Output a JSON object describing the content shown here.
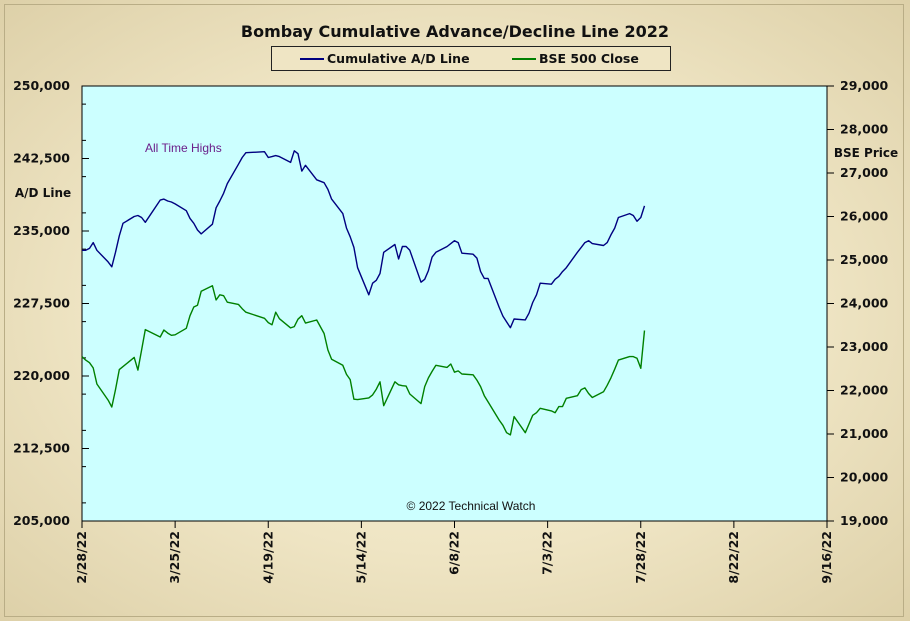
{
  "chart_data": {
    "type": "line",
    "title": "Bombay Cumulative Advance/Decline Line 2022",
    "left_axis_label": "A/D Line",
    "right_axis_label": "BSE Price",
    "left_ylim": [
      205000,
      250000
    ],
    "right_ylim": [
      19000,
      29000
    ],
    "left_ticks": [
      "250,000",
      "242,500",
      "235,000",
      "227,500",
      "220,000",
      "212,500",
      "205,000"
    ],
    "right_ticks": [
      "29,000",
      "28,000",
      "27,000",
      "26,000",
      "25,000",
      "24,000",
      "23,000",
      "22,000",
      "21,000",
      "20,000",
      "19,000"
    ],
    "x_ticks": [
      "2/28/22",
      "3/25/22",
      "4/19/22",
      "5/14/22",
      "6/8/22",
      "7/3/22",
      "7/28/22",
      "8/22/22",
      "9/16/22"
    ],
    "x_range": [
      "2022-02-28",
      "2022-09-16"
    ],
    "grid": false,
    "legend_position": "top-center",
    "annotations": [
      "All Time Highs",
      "© 2022 Technical Watch"
    ],
    "colors": {
      "plot_bg": "#ccffff",
      "ad_line": "#000080",
      "bse_line": "#008000"
    },
    "series": [
      {
        "name": "Cumulative A/D Line",
        "axis": "left",
        "x": [
          "2022-02-28",
          "2022-03-01",
          "2022-03-02",
          "2022-03-03",
          "2022-03-04",
          "2022-03-07",
          "2022-03-08",
          "2022-03-09",
          "2022-03-10",
          "2022-03-11",
          "2022-03-14",
          "2022-03-15",
          "2022-03-16",
          "2022-03-17",
          "2022-03-21",
          "2022-03-22",
          "2022-03-23",
          "2022-03-24",
          "2022-03-25",
          "2022-03-28",
          "2022-03-29",
          "2022-03-30",
          "2022-03-31",
          "2022-04-01",
          "2022-04-04",
          "2022-04-05",
          "2022-04-06",
          "2022-04-07",
          "2022-04-08",
          "2022-04-11",
          "2022-04-12",
          "2022-04-13",
          "2022-04-18",
          "2022-04-19",
          "2022-04-20",
          "2022-04-21",
          "2022-04-22",
          "2022-04-25",
          "2022-04-26",
          "2022-04-27",
          "2022-04-28",
          "2022-04-29",
          "2022-05-02",
          "2022-05-04",
          "2022-05-05",
          "2022-05-06",
          "2022-05-09",
          "2022-05-10",
          "2022-05-11",
          "2022-05-12",
          "2022-05-13",
          "2022-05-16",
          "2022-05-17",
          "2022-05-18",
          "2022-05-19",
          "2022-05-20",
          "2022-05-23",
          "2022-05-24",
          "2022-05-25",
          "2022-05-26",
          "2022-05-27",
          "2022-05-30",
          "2022-05-31",
          "2022-06-01",
          "2022-06-02",
          "2022-06-03",
          "2022-06-06",
          "2022-06-07",
          "2022-06-08",
          "2022-06-09",
          "2022-06-10",
          "2022-06-13",
          "2022-06-14",
          "2022-06-15",
          "2022-06-16",
          "2022-06-17",
          "2022-06-20",
          "2022-06-21",
          "2022-06-22",
          "2022-06-23",
          "2022-06-24",
          "2022-06-27",
          "2022-06-28",
          "2022-06-29",
          "2022-06-30",
          "2022-07-01",
          "2022-07-04",
          "2022-07-05",
          "2022-07-06",
          "2022-07-07",
          "2022-07-08",
          "2022-07-11",
          "2022-07-12",
          "2022-07-13",
          "2022-07-14",
          "2022-07-15",
          "2022-07-18",
          "2022-07-19",
          "2022-07-20",
          "2022-07-21",
          "2022-07-22",
          "2022-07-25",
          "2022-07-26",
          "2022-07-27",
          "2022-07-28",
          "2022-07-29"
        ],
        "values": [
          233000,
          233000,
          233200,
          233800,
          233000,
          231800,
          231300,
          232800,
          234500,
          235800,
          236500,
          236600,
          236400,
          235900,
          238200,
          238300,
          238100,
          238000,
          237800,
          237100,
          236300,
          235800,
          235100,
          234700,
          235700,
          237400,
          238100,
          238900,
          239900,
          241900,
          242600,
          243100,
          243200,
          242600,
          242700,
          242800,
          242700,
          242100,
          243300,
          243000,
          241200,
          241800,
          240300,
          240000,
          239300,
          238300,
          236800,
          235300,
          234400,
          233300,
          231200,
          228400,
          229600,
          229900,
          230600,
          232800,
          233600,
          232100,
          233400,
          233400,
          233000,
          229700,
          230000,
          230900,
          232300,
          232800,
          233400,
          233700,
          234000,
          233800,
          232700,
          232600,
          232200,
          230800,
          230100,
          230100,
          227100,
          226200,
          225600,
          225000,
          225900,
          225800,
          226500,
          227600,
          228400,
          229600,
          229500,
          230000,
          230300,
          230800,
          231200,
          232800,
          233300,
          233800,
          234000,
          233700,
          233500,
          233800,
          234600,
          235300,
          236400,
          236800,
          236600,
          236000,
          236400,
          237600
        ]
      },
      {
        "name": "BSE 500 Close",
        "axis": "right",
        "x": [
          "2022-02-28",
          "2022-03-01",
          "2022-03-02",
          "2022-03-03",
          "2022-03-04",
          "2022-03-07",
          "2022-03-08",
          "2022-03-09",
          "2022-03-10",
          "2022-03-11",
          "2022-03-14",
          "2022-03-15",
          "2022-03-16",
          "2022-03-17",
          "2022-03-21",
          "2022-03-22",
          "2022-03-23",
          "2022-03-24",
          "2022-03-25",
          "2022-03-28",
          "2022-03-29",
          "2022-03-30",
          "2022-03-31",
          "2022-04-01",
          "2022-04-04",
          "2022-04-05",
          "2022-04-06",
          "2022-04-07",
          "2022-04-08",
          "2022-04-11",
          "2022-04-12",
          "2022-04-13",
          "2022-04-18",
          "2022-04-19",
          "2022-04-20",
          "2022-04-21",
          "2022-04-22",
          "2022-04-25",
          "2022-04-26",
          "2022-04-27",
          "2022-04-28",
          "2022-04-29",
          "2022-05-02",
          "2022-05-04",
          "2022-05-05",
          "2022-05-06",
          "2022-05-09",
          "2022-05-10",
          "2022-05-11",
          "2022-05-12",
          "2022-05-13",
          "2022-05-16",
          "2022-05-17",
          "2022-05-18",
          "2022-05-19",
          "2022-05-20",
          "2022-05-23",
          "2022-05-24",
          "2022-05-25",
          "2022-05-26",
          "2022-05-27",
          "2022-05-30",
          "2022-05-31",
          "2022-06-01",
          "2022-06-02",
          "2022-06-03",
          "2022-06-06",
          "2022-06-07",
          "2022-06-08",
          "2022-06-09",
          "2022-06-10",
          "2022-06-13",
          "2022-06-14",
          "2022-06-15",
          "2022-06-16",
          "2022-06-17",
          "2022-06-20",
          "2022-06-21",
          "2022-06-22",
          "2022-06-23",
          "2022-06-24",
          "2022-06-27",
          "2022-06-28",
          "2022-06-29",
          "2022-06-30",
          "2022-07-01",
          "2022-07-04",
          "2022-07-05",
          "2022-07-06",
          "2022-07-07",
          "2022-07-08",
          "2022-07-11",
          "2022-07-12",
          "2022-07-13",
          "2022-07-14",
          "2022-07-15",
          "2022-07-18",
          "2022-07-19",
          "2022-07-20",
          "2022-07-21",
          "2022-07-22",
          "2022-07-25",
          "2022-07-26",
          "2022-07-27",
          "2022-07-28",
          "2022-07-29"
        ],
        "values": [
          22780,
          22700,
          22640,
          22520,
          22150,
          21780,
          21620,
          22020,
          22480,
          22550,
          22760,
          22470,
          22930,
          23400,
          23230,
          23390,
          23320,
          23270,
          23280,
          23430,
          23720,
          23920,
          23960,
          24280,
          24410,
          24080,
          24200,
          24180,
          24030,
          23980,
          23880,
          23800,
          23660,
          23560,
          23510,
          23800,
          23650,
          23440,
          23470,
          23640,
          23720,
          23550,
          23620,
          23310,
          22930,
          22720,
          22580,
          22370,
          22250,
          21800,
          21790,
          21830,
          21900,
          22030,
          22200,
          21650,
          22200,
          22130,
          22110,
          22100,
          21920,
          21700,
          22090,
          22290,
          22440,
          22580,
          22530,
          22610,
          22420,
          22450,
          22380,
          22360,
          22240,
          22090,
          21880,
          21740,
          21320,
          21200,
          21030,
          20980,
          21400,
          21030,
          21230,
          21430,
          21490,
          21590,
          21530,
          21490,
          21630,
          21630,
          21820,
          21880,
          22020,
          22060,
          21930,
          21840,
          21970,
          22120,
          22290,
          22490,
          22700,
          22780,
          22780,
          22740,
          22510,
          23380
        ]
      }
    ]
  }
}
